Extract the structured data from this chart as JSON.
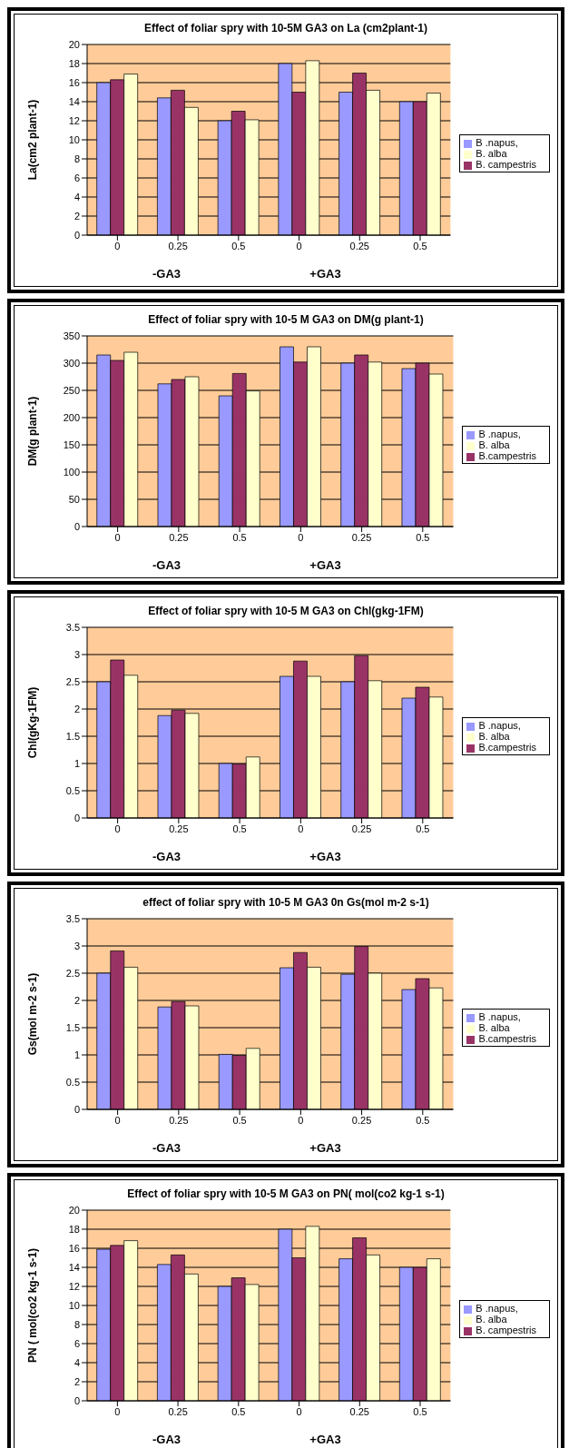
{
  "chart_data": [
    {
      "type": "bar",
      "title": "Effect of foliar spry with 10-5M GA3 on La (cm2plant-1)",
      "ylabel": "La(cm2 plant-1)",
      "categories": [
        "0",
        "0.25",
        "0.5",
        "0",
        "0.25",
        "0.5"
      ],
      "annotations": [
        "-GA3",
        "+GA3"
      ],
      "ylim": [
        0,
        20
      ],
      "yticks": [
        0,
        2,
        4,
        6,
        8,
        10,
        12,
        14,
        16,
        18,
        20
      ],
      "grid": "y",
      "legend": "right",
      "series": [
        {
          "name": "B .napus,",
          "color": "#9999ff",
          "values": [
            16,
            14.4,
            12,
            18,
            15,
            14
          ]
        },
        {
          "name": "B. campestris",
          "color": "#993366",
          "values": [
            16.3,
            15.2,
            13,
            15,
            17,
            14
          ]
        },
        {
          "name": "B. alba",
          "color": "#ffffcc",
          "values": [
            16.9,
            13.4,
            12.1,
            18.3,
            15.2,
            14.9
          ]
        }
      ]
    },
    {
      "type": "bar",
      "title": "Effect of foliar spry with 10-5 M GA3 on DM(g plant-1)",
      "ylabel": "DM(g plant-1)",
      "categories": [
        "0",
        "0.25",
        "0.5",
        "0",
        "0.25",
        "0.5"
      ],
      "annotations": [
        "-GA3",
        "+GA3"
      ],
      "ylim": [
        0,
        350
      ],
      "yticks": [
        0,
        50,
        100,
        150,
        200,
        250,
        300,
        350
      ],
      "grid": "y",
      "legend": "right",
      "series": [
        {
          "name": "B .napus,",
          "color": "#9999ff",
          "values": [
            315,
            262,
            240,
            330,
            300,
            290
          ]
        },
        {
          "name": "B.campestris",
          "color": "#993366",
          "values": [
            305,
            270,
            281,
            302,
            315,
            300
          ]
        },
        {
          "name": "B. alba",
          "color": "#ffffcc",
          "values": [
            320,
            275,
            249,
            330,
            302,
            280
          ]
        }
      ]
    },
    {
      "type": "bar",
      "title": "Effect of foliar spry with 10-5 M GA3 on Chl(gkg-1FM)",
      "ylabel": "Chl(gKg-1FM)",
      "categories": [
        "0",
        "0.25",
        "0.5",
        "0",
        "0.25",
        "0.5"
      ],
      "annotations": [
        "-GA3",
        "+GA3"
      ],
      "ylim": [
        0,
        3.5
      ],
      "yticks": [
        0,
        0.5,
        1,
        1.5,
        2,
        2.5,
        3,
        3.5
      ],
      "grid": "y",
      "legend": "right",
      "series": [
        {
          "name": "B .napus,",
          "color": "#9999ff",
          "values": [
            2.5,
            1.88,
            1.0,
            2.6,
            2.5,
            2.2
          ]
        },
        {
          "name": "B.campestris",
          "color": "#993366",
          "values": [
            2.9,
            1.98,
            0.99,
            2.88,
            2.98,
            2.4
          ]
        },
        {
          "name": "B. alba",
          "color": "#ffffcc",
          "values": [
            2.62,
            1.92,
            1.12,
            2.6,
            2.52,
            2.22
          ]
        }
      ]
    },
    {
      "type": "bar",
      "title": "effect of foliar spry with 10-5 M GA3 0n Gs(mol m-2 s-1)",
      "ylabel": "Gs(mol m-2 s-1)",
      "categories": [
        "0",
        "0.25",
        "0.5",
        "0",
        "0.25",
        "0.5"
      ],
      "annotations": [
        "-GA3",
        "+GA3"
      ],
      "ylim": [
        0,
        3.5
      ],
      "yticks": [
        0,
        0.5,
        1,
        1.5,
        2,
        2.5,
        3,
        3.5
      ],
      "grid": "y",
      "legend": "right",
      "series": [
        {
          "name": "B .napus,",
          "color": "#9999ff",
          "values": [
            2.5,
            1.88,
            1.01,
            2.6,
            2.48,
            2.2
          ]
        },
        {
          "name": "B.campestris",
          "color": "#993366",
          "values": [
            2.91,
            1.98,
            0.99,
            2.88,
            2.99,
            2.4
          ]
        },
        {
          "name": "B. alba",
          "color": "#ffffcc",
          "values": [
            2.61,
            1.9,
            1.12,
            2.61,
            2.5,
            2.23
          ]
        }
      ]
    },
    {
      "type": "bar",
      "title": "Effect of foliar spry with 10-5 M GA3 on PN( mol(co2 kg-1 s-1)",
      "ylabel": "PN ( mol(co2 kg-1 s-1)",
      "categories": [
        "0",
        "0.25",
        "0.5",
        "0",
        "0.25",
        "0.5"
      ],
      "annotations": [
        "-GA3",
        "+GA3"
      ],
      "ylim": [
        0,
        20
      ],
      "yticks": [
        0,
        2,
        4,
        6,
        8,
        10,
        12,
        14,
        16,
        18,
        20
      ],
      "grid": "y",
      "legend": "right",
      "series": [
        {
          "name": "B .napus,",
          "color": "#9999ff",
          "values": [
            15.9,
            14.3,
            12,
            18,
            14.9,
            14
          ]
        },
        {
          "name": "B. campestris",
          "color": "#993366",
          "values": [
            16.3,
            15.3,
            12.9,
            15,
            17.1,
            14
          ]
        },
        {
          "name": "B. alba",
          "color": "#ffffcc",
          "values": [
            16.8,
            13.3,
            12.2,
            18.3,
            15.3,
            14.9
          ]
        }
      ]
    }
  ]
}
